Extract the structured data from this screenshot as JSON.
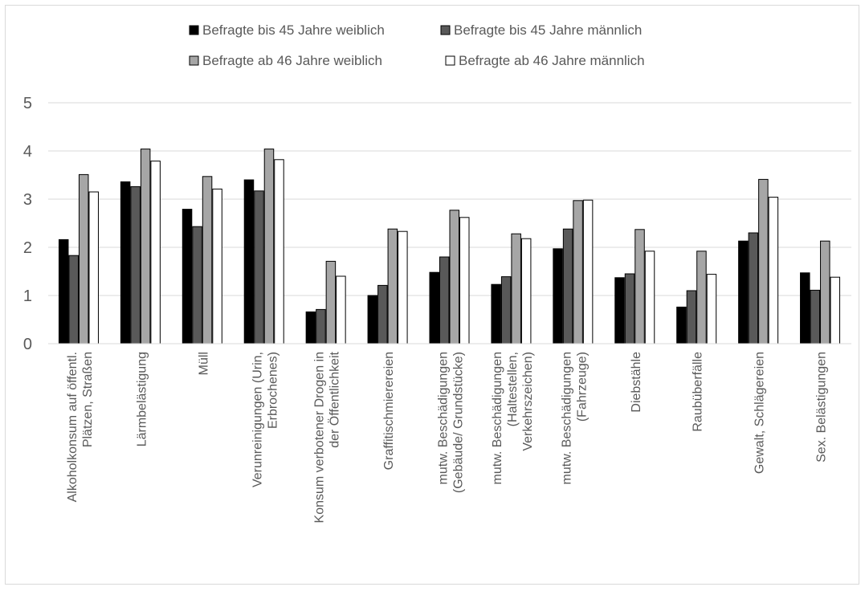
{
  "chart_data": {
    "type": "bar",
    "categories": [
      [
        "Alkoholkonsum auf öffentl.",
        "Plätzen, Straßen"
      ],
      [
        "Lärmbelästigung"
      ],
      [
        "Müll"
      ],
      [
        "Verunreinigungen (Urin,",
        "Erbrochenes)"
      ],
      [
        "Konsum verbotener Drogen in",
        "der Öffentlichkeit"
      ],
      [
        "Graffitischmierereien"
      ],
      [
        "mutw. Beschädigungen",
        "(Gebäude/ Grundstücke)"
      ],
      [
        "mutw. Beschädigungen",
        "(Haltestellen,",
        "Verkehrszeichen)"
      ],
      [
        "mutw. Beschädigungen",
        "(Fahrzeuge)"
      ],
      [
        "Diebstähle"
      ],
      [
        "Raubüberfälle"
      ],
      [
        "Gewalt, Schlägereien"
      ],
      [
        "Sex. Belästigungen"
      ]
    ],
    "series": [
      {
        "name": "Befragte bis 45 Jahre weiblich",
        "color": "#000000",
        "values": [
          2.16,
          3.36,
          2.79,
          3.4,
          0.66,
          1.0,
          1.48,
          1.23,
          1.97,
          1.37,
          0.76,
          2.13,
          1.47
        ]
      },
      {
        "name": "Befragte bis 45 Jahre männlich",
        "color": "#595959",
        "values": [
          1.83,
          3.26,
          2.43,
          3.17,
          0.71,
          1.21,
          1.8,
          1.39,
          2.38,
          1.45,
          1.1,
          2.3,
          1.11
        ]
      },
      {
        "name": "Befragte ab 46 Jahre weiblich",
        "color": "#a6a6a6",
        "values": [
          3.51,
          4.04,
          3.47,
          4.04,
          1.71,
          2.38,
          2.77,
          2.28,
          2.97,
          2.37,
          1.92,
          3.41,
          2.13
        ]
      },
      {
        "name": "Befragte ab 46 Jahre männlich",
        "color": "#ffffff",
        "values": [
          3.15,
          3.79,
          3.21,
          3.82,
          1.4,
          2.33,
          2.62,
          2.18,
          2.98,
          1.92,
          1.44,
          3.04,
          1.38
        ]
      }
    ],
    "yticks": [
      "0",
      "1",
      "2",
      "3",
      "4",
      "5"
    ],
    "ylim": [
      0,
      5
    ],
    "grid": true,
    "legend_position": "top-center"
  }
}
